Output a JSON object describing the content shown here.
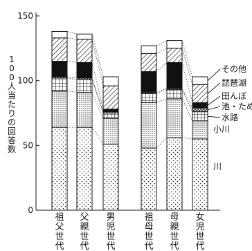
{
  "chart_data": {
    "type": "bar",
    "stacked": true,
    "ylabel": "100人当たりの回答数",
    "ylim": [
      0,
      150
    ],
    "yticks": [
      0,
      50,
      100,
      150
    ],
    "grid": false,
    "legend_position": "right",
    "categories": [
      "祖父世代",
      "父親世代",
      "男児世代",
      "祖母世代",
      "母親世代",
      "女児世代"
    ],
    "series": [
      {
        "name": "川",
        "pattern": "dots",
        "values": [
          64,
          64,
          51,
          48,
          56,
          55
        ]
      },
      {
        "name": "小川",
        "pattern": "dense-dots",
        "values": [
          28,
          27,
          20,
          35,
          30,
          14
        ]
      },
      {
        "name": "水路",
        "pattern": "grid",
        "values": [
          10,
          10,
          4,
          7,
          7,
          7
        ]
      },
      {
        "name": "池・ため池",
        "pattern": "crosshatch",
        "values": [
          1,
          1,
          1,
          1,
          1,
          3
        ]
      },
      {
        "name": "田んぼ",
        "pattern": "solid",
        "values": [
          12,
          12,
          2,
          16,
          20,
          4
        ]
      },
      {
        "name": "琵琶湖",
        "pattern": "hatch",
        "values": [
          18,
          18,
          18,
          14,
          11,
          14
        ]
      },
      {
        "name": "その他",
        "pattern": "white",
        "values": [
          5,
          4,
          7,
          6,
          6,
          6
        ]
      }
    ]
  },
  "legend_order": [
    "その他",
    "琵琶湖",
    "田んぼ",
    "池・ため池",
    "水路",
    "小川",
    "川"
  ]
}
